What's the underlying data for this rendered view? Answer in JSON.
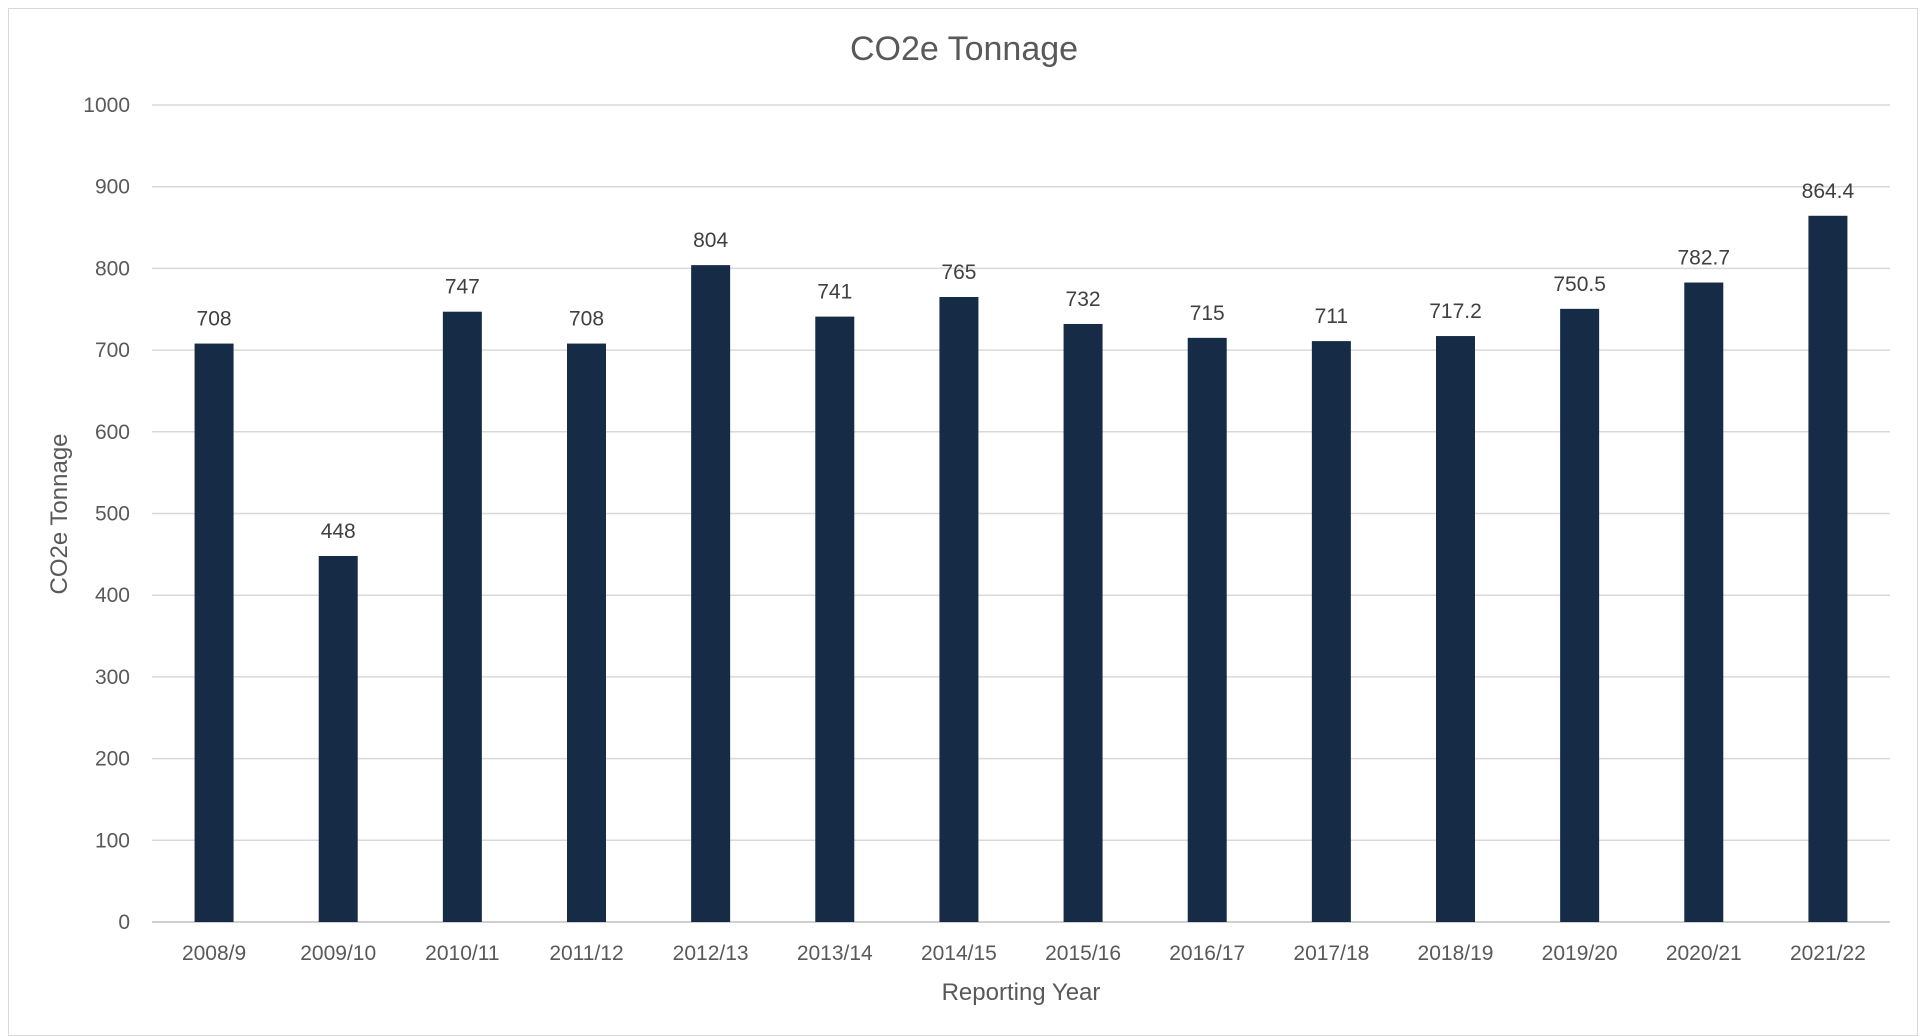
{
  "chart_data": {
    "type": "bar",
    "title": "CO2e Tonnage",
    "xlabel": "Reporting Year",
    "ylabel": "CO2e Tonnage",
    "ylim": [
      0,
      1000
    ],
    "ytick_step": 100,
    "grid": true,
    "legend": "none",
    "bar_color": "#162b46",
    "categories": [
      "2008/9",
      "2009/10",
      "2010/11",
      "2011/12",
      "2012/13",
      "2013/14",
      "2014/15",
      "2015/16",
      "2016/17",
      "2017/18",
      "2018/19",
      "2019/20",
      "2020/21",
      "2021/22"
    ],
    "values": [
      708,
      448,
      747,
      708,
      804,
      741,
      765,
      732,
      715,
      711,
      717.2,
      750.5,
      782.7,
      864.4
    ],
    "data_labels": [
      "708",
      "448",
      "747",
      "708",
      "804",
      "741",
      "765",
      "732",
      "715",
      "711",
      "717.2",
      "750.5",
      "782.7",
      "864.4"
    ]
  }
}
